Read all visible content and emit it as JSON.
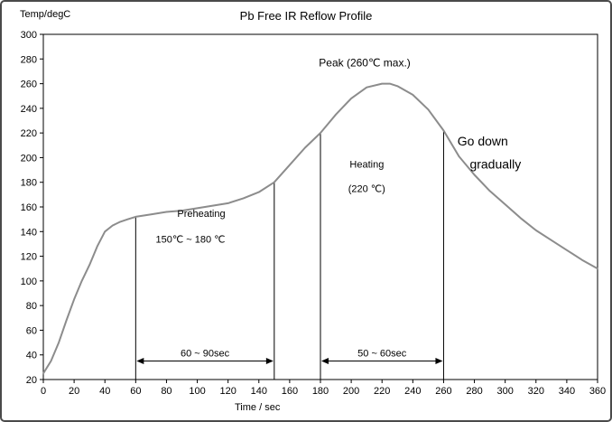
{
  "chart_data": {
    "type": "line",
    "title": "Pb Free IR Reflow Profile",
    "xlabel": "Time / sec",
    "ylabel": "Temp/degC",
    "xlim": [
      0,
      360
    ],
    "ylim": [
      20,
      300
    ],
    "xtick_step": 20,
    "ytick_step": 20,
    "grid": false,
    "legend": "none",
    "series": [
      {
        "name": "reflow-temperature-curve",
        "color": "#8c8c8c",
        "points": [
          [
            0,
            25
          ],
          [
            5,
            35
          ],
          [
            10,
            50
          ],
          [
            15,
            68
          ],
          [
            20,
            85
          ],
          [
            25,
            100
          ],
          [
            30,
            113
          ],
          [
            35,
            128
          ],
          [
            40,
            140
          ],
          [
            45,
            145
          ],
          [
            50,
            148
          ],
          [
            55,
            150
          ],
          [
            60,
            152
          ],
          [
            70,
            154
          ],
          [
            80,
            156
          ],
          [
            90,
            157
          ],
          [
            100,
            159
          ],
          [
            110,
            161
          ],
          [
            120,
            163
          ],
          [
            130,
            167
          ],
          [
            140,
            172
          ],
          [
            150,
            180
          ],
          [
            160,
            194
          ],
          [
            170,
            208
          ],
          [
            180,
            220
          ],
          [
            190,
            235
          ],
          [
            200,
            248
          ],
          [
            210,
            257
          ],
          [
            220,
            260
          ],
          [
            225,
            260
          ],
          [
            230,
            258
          ],
          [
            240,
            251
          ],
          [
            250,
            239
          ],
          [
            260,
            222
          ],
          [
            270,
            201
          ],
          [
            280,
            186
          ],
          [
            290,
            173
          ],
          [
            300,
            162
          ],
          [
            310,
            151
          ],
          [
            320,
            141
          ],
          [
            330,
            133
          ],
          [
            340,
            125
          ],
          [
            350,
            117
          ],
          [
            360,
            110
          ]
        ]
      }
    ],
    "vertical_markers": [
      60,
      150,
      180,
      260
    ],
    "intervals": [
      {
        "label": "60 ~ 90sec",
        "from": 60,
        "to": 150,
        "y": 35
      },
      {
        "label": "50 ~ 60sec",
        "from": 180,
        "to": 260,
        "y": 35
      }
    ],
    "annotations": [
      {
        "id": "peak-label",
        "text": "Peak (260℃ max.)",
        "t": 179,
        "temp": 274,
        "size": 12
      },
      {
        "id": "preheating-label",
        "text": "Preheating",
        "t": 87,
        "temp": 152,
        "size": 11
      },
      {
        "id": "preheating-range-label",
        "text": "150℃ ~ 180 ℃",
        "t": 73,
        "temp": 131,
        "size": 11
      },
      {
        "id": "heating-label",
        "text": "Heating",
        "t": 199,
        "temp": 192,
        "size": 11
      },
      {
        "id": "heating-temp-label",
        "text": "(220 ℃)",
        "t": 198,
        "temp": 172,
        "size": 11
      },
      {
        "id": "go-down-label",
        "text": "Go down",
        "t": 269,
        "temp": 210,
        "size": 14
      },
      {
        "id": "gradually-label",
        "text": "gradually",
        "t": 277,
        "temp": 191,
        "size": 14
      }
    ]
  }
}
